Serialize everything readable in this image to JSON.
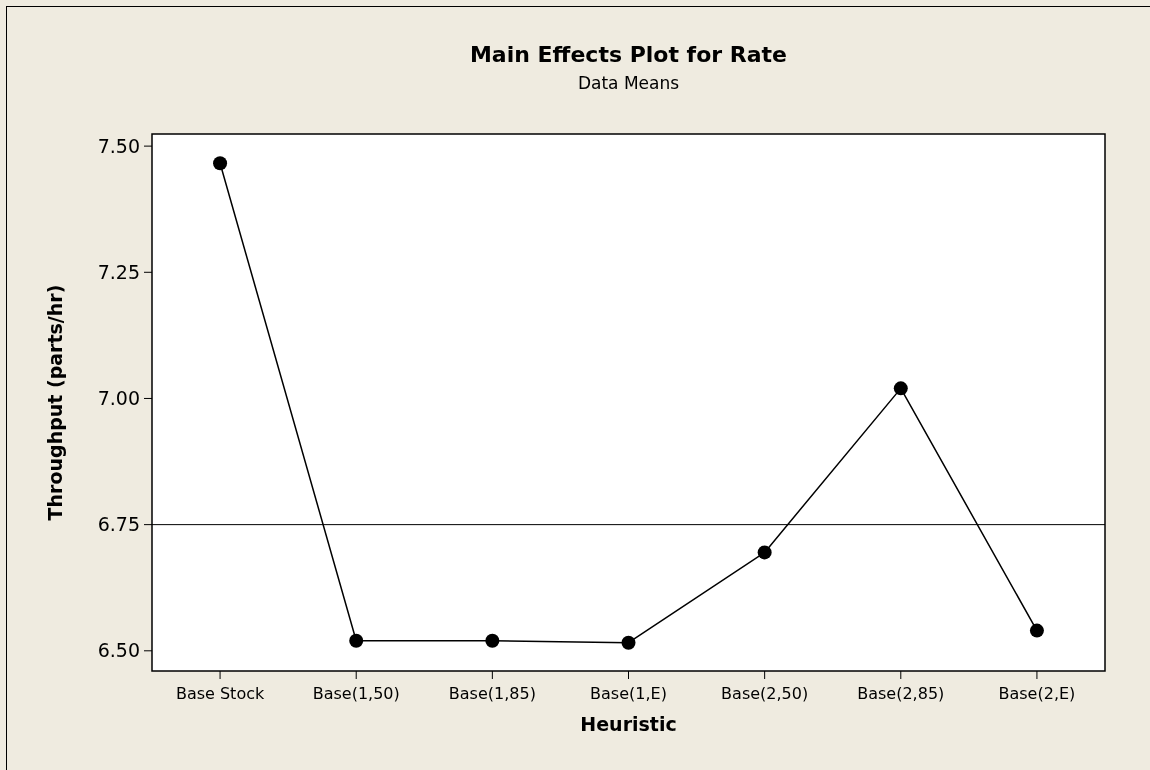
{
  "chart_data": {
    "type": "line",
    "title": "Main Effects Plot for Rate",
    "subtitle": "Data Means",
    "xlabel": "Heuristic",
    "ylabel": "Throughput (parts/hr)",
    "categories": [
      "Base Stock",
      "Base(1,50)",
      "Base(1,85)",
      "Base(1,E)",
      "Base(2,50)",
      "Base(2,85)",
      "Base(2,E)"
    ],
    "series": [
      {
        "color": "#000000",
        "values": [
          7.466,
          6.52,
          6.52,
          6.516,
          6.695,
          7.02,
          6.54
        ]
      }
    ],
    "ylim": [
      6.46,
      7.524
    ],
    "yticks": [
      {
        "value": 6.5,
        "label": "6.50"
      },
      {
        "value": 6.75,
        "label": "6.75"
      },
      {
        "value": 7,
        "label": "7.00"
      },
      {
        "value": 7.25,
        "label": "7.25"
      },
      {
        "value": 7.5,
        "label": "7.50"
      }
    ],
    "ref_lines": [
      {
        "axis": "y",
        "value": 6.75,
        "color": "#000000"
      }
    ],
    "marker": "circle",
    "line_style": "solid",
    "grid": false
  }
}
